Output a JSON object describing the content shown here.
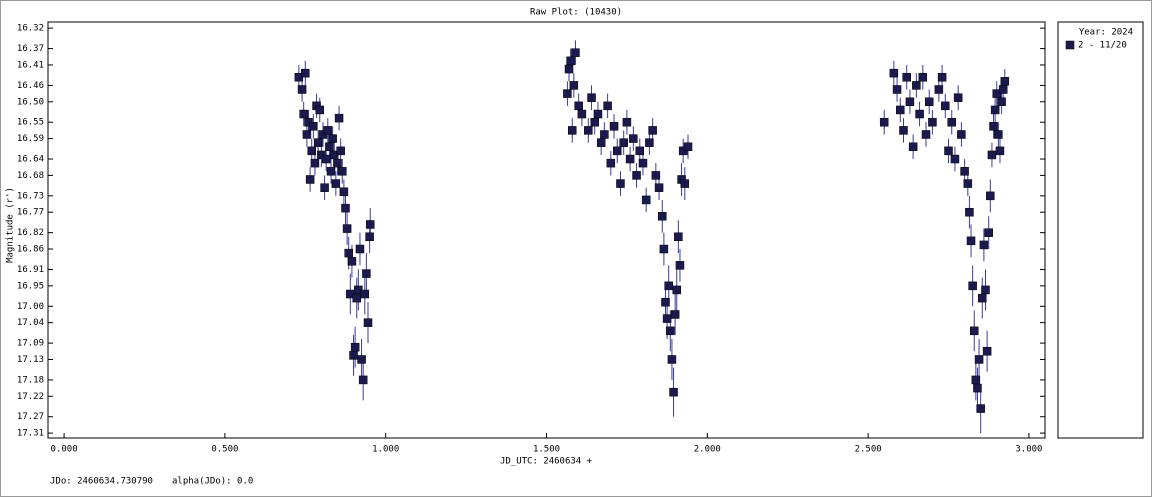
{
  "chart_data": {
    "type": "scatter",
    "title": "Raw Plot: (10430)",
    "x_label": "JD_UTC: 2460634 +",
    "y_label": "Magnitude (r')",
    "footer": [
      "JDo: 2460634.730790",
      "alpha(JDo): 0.0"
    ],
    "legend_title": "Year: 2024",
    "xlim": [
      -0.05,
      3.05
    ],
    "ylim": [
      16.305,
      17.322
    ],
    "y_inverted": true,
    "xticks": [
      {
        "value": 0,
        "label": "0.000"
      },
      {
        "value": 0.5,
        "label": "0.500"
      },
      {
        "value": 1,
        "label": "1.000"
      },
      {
        "value": 1.5,
        "label": "1.500"
      },
      {
        "value": 2,
        "label": "2.000"
      },
      {
        "value": 2.5,
        "label": "2.500"
      },
      {
        "value": 3,
        "label": "3.000"
      }
    ],
    "yticks": [
      {
        "value": 16.32,
        "label": "16.32"
      },
      {
        "value": 16.37,
        "label": "16.37"
      },
      {
        "value": 16.41,
        "label": "16.41"
      },
      {
        "value": 16.46,
        "label": "16.46"
      },
      {
        "value": 16.5,
        "label": "16.50"
      },
      {
        "value": 16.55,
        "label": "16.55"
      },
      {
        "value": 16.59,
        "label": "16.59"
      },
      {
        "value": 16.64,
        "label": "16.64"
      },
      {
        "value": 16.68,
        "label": "16.68"
      },
      {
        "value": 16.73,
        "label": "16.73"
      },
      {
        "value": 16.77,
        "label": "16.77"
      },
      {
        "value": 16.82,
        "label": "16.82"
      },
      {
        "value": 16.86,
        "label": "16.86"
      },
      {
        "value": 16.91,
        "label": "16.91"
      },
      {
        "value": 16.95,
        "label": "16.95"
      },
      {
        "value": 17,
        "label": "17.00"
      },
      {
        "value": 17.04,
        "label": "17.04"
      },
      {
        "value": 17.09,
        "label": "17.09"
      },
      {
        "value": 17.13,
        "label": "17.13"
      },
      {
        "value": 17.18,
        "label": "17.18"
      },
      {
        "value": 17.22,
        "label": "17.22"
      },
      {
        "value": 17.27,
        "label": "17.27"
      },
      {
        "value": 17.31,
        "label": "17.31"
      }
    ],
    "series": [
      {
        "name": "2 - 11/20",
        "color": "#1b1a4f",
        "error_color": "#3a3a9a",
        "x": [
          0.73,
          0.74,
          0.745,
          0.75,
          0.755,
          0.76,
          0.765,
          0.77,
          0.775,
          0.78,
          0.785,
          0.79,
          0.795,
          0.8,
          0.805,
          0.81,
          0.815,
          0.82,
          0.825,
          0.83,
          0.835,
          0.84,
          0.845,
          0.85,
          0.855,
          0.86,
          0.865,
          0.87,
          0.875,
          0.88,
          0.885,
          0.89,
          0.895,
          0.9,
          0.905,
          0.91,
          0.915,
          0.92,
          0.925,
          0.93,
          0.935,
          0.94,
          0.945,
          0.95,
          0.952,
          1.565,
          1.57,
          1.575,
          1.58,
          1.585,
          1.59,
          1.6,
          1.61,
          1.63,
          1.64,
          1.65,
          1.66,
          1.67,
          1.68,
          1.69,
          1.7,
          1.71,
          1.72,
          1.73,
          1.74,
          1.75,
          1.76,
          1.77,
          1.78,
          1.79,
          1.8,
          1.81,
          1.82,
          1.83,
          1.84,
          1.85,
          1.86,
          1.865,
          1.87,
          1.875,
          1.88,
          1.885,
          1.89,
          1.895,
          1.9,
          1.905,
          1.91,
          1.915,
          1.92,
          1.925,
          1.93,
          1.94,
          2.55,
          2.58,
          2.59,
          2.6,
          2.61,
          2.62,
          2.63,
          2.64,
          2.65,
          2.66,
          2.67,
          2.68,
          2.69,
          2.7,
          2.72,
          2.73,
          2.74,
          2.75,
          2.76,
          2.77,
          2.78,
          2.79,
          2.8,
          2.81,
          2.815,
          2.82,
          2.825,
          2.83,
          2.835,
          2.84,
          2.845,
          2.85,
          2.855,
          2.86,
          2.865,
          2.87,
          2.875,
          2.88,
          2.885,
          2.89,
          2.895,
          2.9,
          2.905,
          2.91,
          2.915,
          2.92,
          2.925
        ],
        "values": [
          16.44,
          16.47,
          16.53,
          16.43,
          16.58,
          16.55,
          16.69,
          16.62,
          16.56,
          16.65,
          16.51,
          16.6,
          16.52,
          16.63,
          16.58,
          16.71,
          16.64,
          16.57,
          16.61,
          16.67,
          16.59,
          16.63,
          16.7,
          16.65,
          16.54,
          16.62,
          16.67,
          16.72,
          16.76,
          16.81,
          16.87,
          16.97,
          16.89,
          17.12,
          17.1,
          16.98,
          16.96,
          16.86,
          17.13,
          17.18,
          16.97,
          16.92,
          17.04,
          16.83,
          16.8,
          16.48,
          16.42,
          16.4,
          16.57,
          16.46,
          16.38,
          16.51,
          16.53,
          16.57,
          16.49,
          16.55,
          16.53,
          16.6,
          16.58,
          16.51,
          16.65,
          16.56,
          16.62,
          16.7,
          16.6,
          16.55,
          16.64,
          16.59,
          16.68,
          16.62,
          16.65,
          16.74,
          16.6,
          16.57,
          16.68,
          16.71,
          16.78,
          16.86,
          16.99,
          17.03,
          16.95,
          17.06,
          17.13,
          17.21,
          17.02,
          16.96,
          16.83,
          16.9,
          16.69,
          16.62,
          16.7,
          16.61,
          16.55,
          16.43,
          16.47,
          16.52,
          16.57,
          16.44,
          16.5,
          16.61,
          16.46,
          16.53,
          16.44,
          16.58,
          16.5,
          16.55,
          16.47,
          16.44,
          16.51,
          16.62,
          16.55,
          16.64,
          16.49,
          16.58,
          16.67,
          16.7,
          16.77,
          16.84,
          16.95,
          17.06,
          17.18,
          17.2,
          17.13,
          17.25,
          16.98,
          16.85,
          16.96,
          17.11,
          16.82,
          16.73,
          16.63,
          16.56,
          16.52,
          16.48,
          16.58,
          16.62,
          16.5,
          16.47,
          16.45
        ],
        "errors": [
          0.03,
          0.03,
          0.03,
          0.03,
          0.03,
          0.03,
          0.03,
          0.03,
          0.03,
          0.03,
          0.03,
          0.03,
          0.03,
          0.03,
          0.03,
          0.03,
          0.03,
          0.03,
          0.03,
          0.03,
          0.03,
          0.03,
          0.03,
          0.03,
          0.03,
          0.03,
          0.03,
          0.03,
          0.04,
          0.04,
          0.04,
          0.05,
          0.04,
          0.05,
          0.05,
          0.05,
          0.05,
          0.04,
          0.05,
          0.05,
          0.05,
          0.05,
          0.05,
          0.04,
          0.04,
          0.03,
          0.03,
          0.03,
          0.03,
          0.03,
          0.03,
          0.03,
          0.03,
          0.03,
          0.03,
          0.03,
          0.03,
          0.03,
          0.03,
          0.03,
          0.03,
          0.03,
          0.03,
          0.03,
          0.03,
          0.03,
          0.03,
          0.03,
          0.03,
          0.03,
          0.03,
          0.03,
          0.03,
          0.03,
          0.03,
          0.03,
          0.04,
          0.04,
          0.05,
          0.05,
          0.05,
          0.05,
          0.05,
          0.06,
          0.05,
          0.05,
          0.04,
          0.04,
          0.04,
          0.03,
          0.04,
          0.03,
          0.03,
          0.03,
          0.03,
          0.03,
          0.03,
          0.03,
          0.03,
          0.03,
          0.03,
          0.03,
          0.03,
          0.03,
          0.03,
          0.03,
          0.03,
          0.03,
          0.03,
          0.03,
          0.03,
          0.03,
          0.03,
          0.03,
          0.03,
          0.03,
          0.04,
          0.04,
          0.05,
          0.05,
          0.05,
          0.05,
          0.05,
          0.06,
          0.05,
          0.04,
          0.05,
          0.05,
          0.04,
          0.04,
          0.03,
          0.03,
          0.03,
          0.03,
          0.03,
          0.03,
          0.03,
          0.03,
          0.03
        ]
      }
    ]
  }
}
